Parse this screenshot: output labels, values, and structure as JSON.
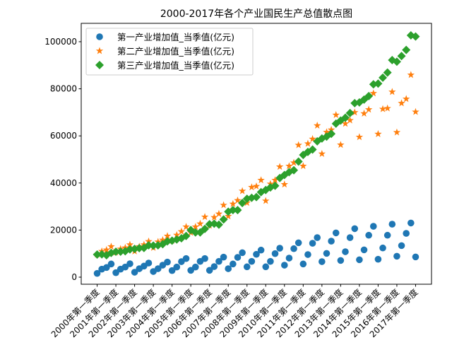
{
  "chart_data": {
    "type": "scatter",
    "title": "2000-2017年各个产业国民生产总值散点图",
    "xlabel": "",
    "ylabel": "",
    "x_tick_labels": [
      "2000年第一季度",
      "2001年第一季度",
      "2002年第一季度",
      "2003年第一季度",
      "2004年第一季度",
      "2005年第一季度",
      "2006年第一季度",
      "2007年第一季度",
      "2008年第一季度",
      "2009年第一季度",
      "2010年第一季度",
      "2011年第一季度",
      "2012年第一季度",
      "2013年第一季度",
      "2014年第一季度",
      "2015年第一季度",
      "2016年第一季度",
      "2017年第一季度"
    ],
    "y_ticks": [
      0,
      20000,
      40000,
      60000,
      80000,
      100000
    ],
    "ylim": [
      -3000,
      107800
    ],
    "grid": false,
    "legend_position": "top-left",
    "x_note": "quarters 2000Q1 to 2017Q1",
    "series": [
      {
        "name": "第一产业增加值_当季值(亿元)",
        "marker": "circle",
        "color": "#1f77b4",
        "values": [
          1600,
          3400,
          4100,
          5600,
          1900,
          3400,
          4300,
          5700,
          2100,
          3600,
          4700,
          6000,
          2400,
          3600,
          5100,
          6400,
          2800,
          4300,
          6600,
          7900,
          2900,
          4300,
          6700,
          7900,
          2900,
          4500,
          6700,
          8500,
          3600,
          5600,
          8400,
          10400,
          4400,
          6700,
          9700,
          11500,
          4400,
          6700,
          10000,
          12300,
          5100,
          8100,
          12100,
          14600,
          5600,
          9600,
          14400,
          16800,
          6600,
          10100,
          15300,
          18800,
          7100,
          10800,
          16800,
          20600,
          7400,
          11600,
          17800,
          21600,
          7600,
          12400,
          17800,
          22500,
          8900,
          13400,
          18600,
          23000,
          8600
        ]
      },
      {
        "name": "第二产业增加值_当季值(亿元)",
        "marker": "star",
        "color": "#ff7f0e",
        "values": [
          9600,
          11000,
          11600,
          13000,
          10500,
          12000,
          12500,
          13800,
          11000,
          13000,
          13800,
          15200,
          12500,
          15000,
          15800,
          17500,
          15500,
          17900,
          19400,
          21400,
          18900,
          21400,
          22700,
          25600,
          21900,
          25400,
          26900,
          30600,
          25900,
          31100,
          32600,
          36600,
          31600,
          38200,
          38600,
          41200,
          32400,
          39600,
          41200,
          46900,
          39400,
          47200,
          48600,
          56100,
          47200,
          56700,
          58700,
          64400,
          52400,
          61600,
          62600,
          68900,
          56200,
          65200,
          66600,
          70000,
          59500,
          69500,
          71200,
          78100,
          60800,
          71400,
          71700,
          78700,
          61500,
          73900,
          75700,
          85900,
          70200
        ]
      },
      {
        "name": "第三产业增加值_当季值(亿元)",
        "marker": "diamond",
        "color": "#2ca02c",
        "values": [
          9600,
          9700,
          9300,
          10300,
          10800,
          10800,
          11000,
          11800,
          12000,
          12300,
          12400,
          13500,
          13400,
          13500,
          14000,
          15200,
          15500,
          16000,
          16500,
          17500,
          20000,
          19000,
          19000,
          20500,
          22500,
          22700,
          22300,
          24500,
          27800,
          28500,
          28500,
          31500,
          33300,
          33700,
          34000,
          36100,
          37000,
          38100,
          38800,
          42100,
          43400,
          44600,
          45400,
          49100,
          51900,
          53200,
          54200,
          57700,
          58900,
          59700,
          60900,
          65200,
          66500,
          67700,
          69700,
          73900,
          74200,
          75400,
          76900,
          81900,
          82200,
          84700,
          86900,
          92200,
          91500,
          93900,
          96500,
          102700,
          102200
        ]
      }
    ]
  }
}
